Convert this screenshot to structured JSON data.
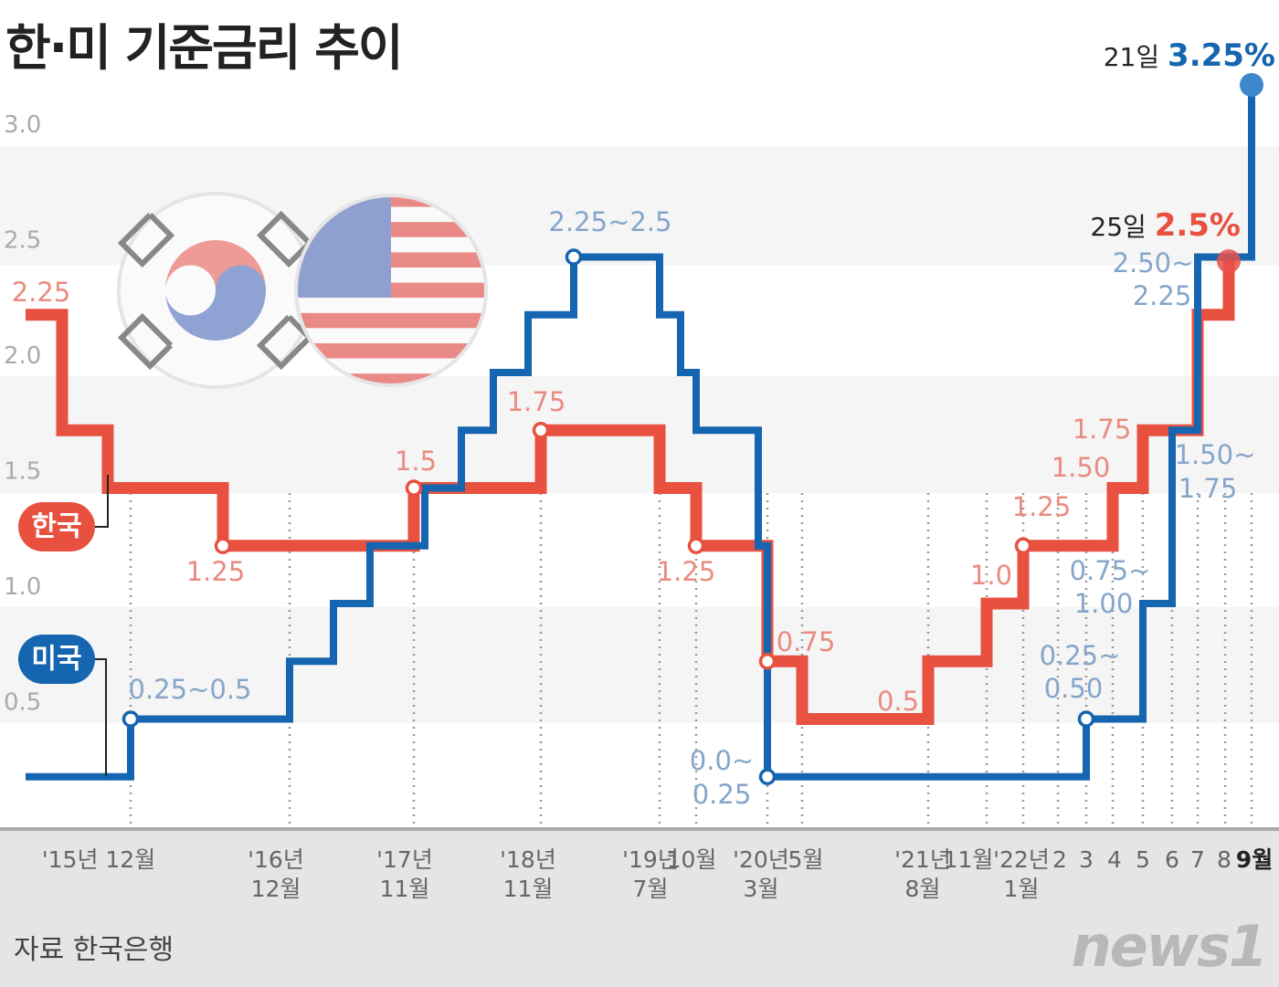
{
  "title": "한·미 기준금리 추이",
  "source": "자료 한국은행",
  "logo": "news1",
  "colors": {
    "korea": "#e8503f",
    "us": "#1565b0",
    "korea_label": "#ea8b80",
    "us_label": "#85a6c9",
    "band": "#f5f5f5"
  },
  "flags": [
    "korea-flag-icon",
    "us-flag-icon"
  ],
  "chart_data": {
    "type": "line",
    "step": true,
    "ylim": [
      0,
      3.25
    ],
    "yticks": [
      "0.5",
      "1.0",
      "1.5",
      "2.0",
      "2.5",
      "3.0"
    ],
    "grid": "alternating bands",
    "legend": "left",
    "xticks": [
      {
        "l1": "'15년 12월",
        "l2": "",
        "date": "2015-12"
      },
      {
        "l1": "'16년",
        "l2": "12월",
        "date": "2016-12"
      },
      {
        "l1": "'17년",
        "l2": "11월",
        "date": "2017-11"
      },
      {
        "l1": "'18년",
        "l2": "11월",
        "date": "2018-11"
      },
      {
        "l1": "'19년",
        "l2": "7월",
        "date": "2019-07"
      },
      {
        "l1": "10월",
        "l2": "",
        "date": "2019-10"
      },
      {
        "l1": "'20년",
        "l2": "3월",
        "date": "2020-03"
      },
      {
        "l1": "5월",
        "l2": "",
        "date": "2020-05"
      },
      {
        "l1": "'21년",
        "l2": "8월",
        "date": "2021-08"
      },
      {
        "l1": "11월",
        "l2": "",
        "date": "2021-11"
      },
      {
        "l1": "'22년",
        "l2": "1월",
        "date": "2022-01"
      },
      {
        "l1": "2",
        "l2": "",
        "date": "2022-02"
      },
      {
        "l1": "3",
        "l2": "",
        "date": "2022-03"
      },
      {
        "l1": "4",
        "l2": "",
        "date": "2022-04"
      },
      {
        "l1": "5",
        "l2": "",
        "date": "2022-05"
      },
      {
        "l1": "6",
        "l2": "",
        "date": "2022-06"
      },
      {
        "l1": "7",
        "l2": "",
        "date": "2022-07"
      },
      {
        "l1": "8",
        "l2": "",
        "date": "2022-08"
      },
      {
        "l1": "9월",
        "l2": "",
        "date": "2022-09"
      }
    ],
    "series": [
      {
        "name": "한국",
        "key": "korea",
        "points": [
          [
            "2014-12",
            2.25
          ],
          [
            "2015-03",
            1.75
          ],
          [
            "2015-06",
            1.5
          ],
          [
            "2016-06",
            1.25
          ],
          [
            "2017-11",
            1.5
          ],
          [
            "2018-11",
            1.75
          ],
          [
            "2019-07",
            1.5
          ],
          [
            "2019-10",
            1.25
          ],
          [
            "2020-03",
            0.75
          ],
          [
            "2020-05",
            0.5
          ],
          [
            "2021-08",
            0.75
          ],
          [
            "2021-11",
            1.0
          ],
          [
            "2022-01",
            1.25
          ],
          [
            "2022-04",
            1.5
          ],
          [
            "2022-05",
            1.75
          ],
          [
            "2022-07",
            2.25
          ],
          [
            "2022-08-25",
            2.5
          ]
        ]
      },
      {
        "name": "미국",
        "key": "us",
        "points": [
          [
            "2014-12",
            0.25
          ],
          [
            "2015-12",
            0.5
          ],
          [
            "2016-12",
            0.75
          ],
          [
            "2017-03",
            1.0
          ],
          [
            "2017-06",
            1.25
          ],
          [
            "2017-12",
            1.5
          ],
          [
            "2018-03",
            1.75
          ],
          [
            "2018-06",
            2.0
          ],
          [
            "2018-09",
            2.25
          ],
          [
            "2018-12",
            2.5
          ],
          [
            "2019-07",
            2.25
          ],
          [
            "2019-09",
            2.0
          ],
          [
            "2019-10",
            1.75
          ],
          [
            "2020-03-03",
            1.25
          ],
          [
            "2020-03-16",
            0.25
          ],
          [
            "2022-03",
            0.5
          ],
          [
            "2022-05",
            1.0
          ],
          [
            "2022-06",
            1.75
          ],
          [
            "2022-07",
            2.5
          ],
          [
            "2022-09-21",
            3.25
          ]
        ]
      }
    ],
    "annotations": [
      {
        "series": "korea",
        "text": "2.25"
      },
      {
        "series": "korea",
        "text": "1.25"
      },
      {
        "series": "korea",
        "text": "1.5"
      },
      {
        "series": "korea",
        "text": "1.75"
      },
      {
        "series": "korea",
        "text": "1.25"
      },
      {
        "series": "korea",
        "text": "0.75"
      },
      {
        "series": "korea",
        "text": "0.5"
      },
      {
        "series": "korea",
        "text": "1.0"
      },
      {
        "series": "korea",
        "text": "1.25"
      },
      {
        "series": "korea",
        "text": "1.50"
      },
      {
        "series": "korea",
        "text": "1.75"
      },
      {
        "series": "us",
        "text": "0.25~0.5"
      },
      {
        "series": "us",
        "text": "2.25~2.5"
      },
      {
        "series": "us",
        "text": "0.0~"
      },
      {
        "series": "us",
        "text": "0.25"
      },
      {
        "series": "us",
        "text": "0.25~"
      },
      {
        "series": "us",
        "text": "0.50"
      },
      {
        "series": "us",
        "text": "0.75~"
      },
      {
        "series": "us",
        "text": "1.00"
      },
      {
        "series": "us",
        "text": "1.50~"
      },
      {
        "series": "us",
        "text": "1.75"
      },
      {
        "series": "us",
        "text": "2.50~"
      },
      {
        "series": "us",
        "text": "2.25"
      }
    ],
    "final": {
      "korea": {
        "day": "25일",
        "value": "2.5%"
      },
      "us": {
        "day": "21일",
        "value": "3.25%"
      }
    }
  }
}
